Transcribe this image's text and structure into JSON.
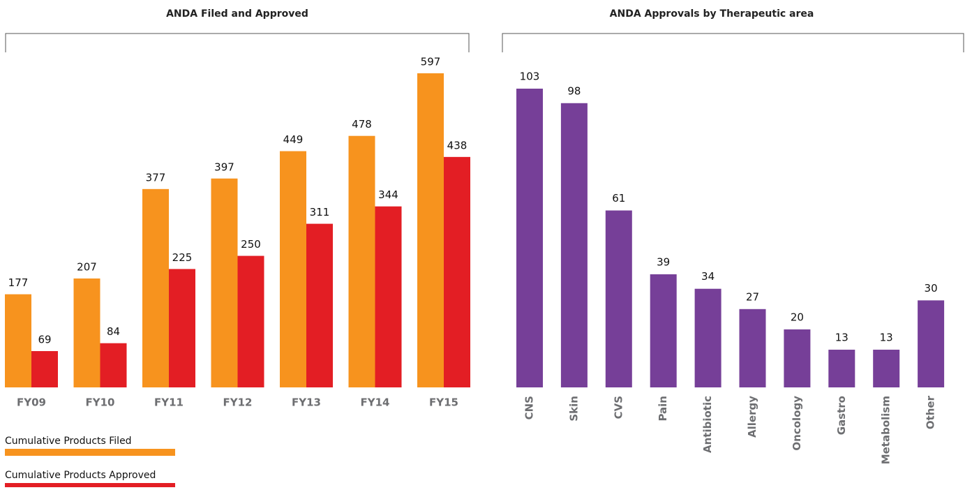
{
  "chart_data": [
    {
      "type": "grouped-bar",
      "title": "ANDA Filed and Approved",
      "categories": [
        "FY09",
        "FY10",
        "FY11",
        "FY12",
        "FY13",
        "FY14",
        "FY15"
      ],
      "series": [
        {
          "name": "Cumulative Products Filed",
          "color": "#f7931e",
          "values": [
            177,
            207,
            377,
            397,
            449,
            478,
            597
          ]
        },
        {
          "name": "Cumulative Products Approved",
          "color": "#e31e24",
          "values": [
            69,
            84,
            225,
            250,
            311,
            344,
            438
          ]
        }
      ]
    },
    {
      "type": "bar",
      "title": "ANDA Approvals by Therapeutic area",
      "categories": [
        "CNS",
        "Skin",
        "CVS",
        "Pain",
        "Antibiotic",
        "Allergy",
        "Oncology",
        "Gastro",
        "Metabolism",
        "Other"
      ],
      "values": [
        103,
        98,
        61,
        39,
        34,
        27,
        20,
        13,
        13,
        30
      ],
      "color": "#763f98"
    }
  ]
}
